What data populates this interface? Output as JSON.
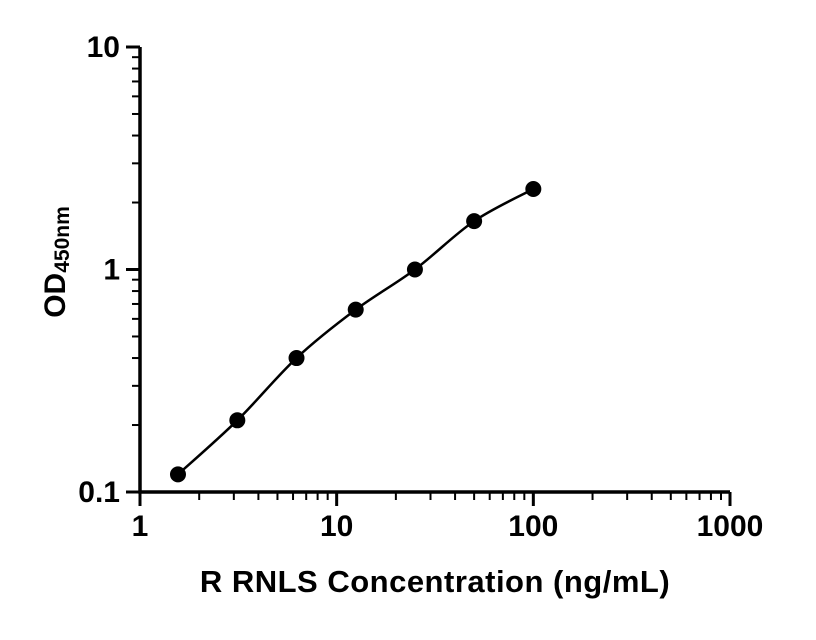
{
  "chart_data": {
    "type": "line",
    "x": [
      1.56,
      3.125,
      6.25,
      12.5,
      25,
      50,
      100
    ],
    "y": [
      0.12,
      0.21,
      0.4,
      0.66,
      1.0,
      1.65,
      2.3
    ],
    "xlabel": "R RNLS Concentration (ng/mL)",
    "ylabel_main": "OD",
    "ylabel_sub": "450nm",
    "x_scale": "log",
    "y_scale": "log",
    "xlim": [
      1,
      1000
    ],
    "ylim": [
      0.1,
      10
    ],
    "x_ticks": [
      1,
      10,
      100,
      1000
    ],
    "x_tick_labels": [
      "1",
      "10",
      "100",
      "1000"
    ],
    "y_ticks": [
      0.1,
      1,
      10
    ],
    "y_tick_labels": [
      "0.1",
      "1",
      "10"
    ],
    "grid": false,
    "legend": "none",
    "marker_color": "#000000",
    "line_color": "#000000",
    "axis_color": "#000000",
    "background_color": "#ffffff"
  }
}
